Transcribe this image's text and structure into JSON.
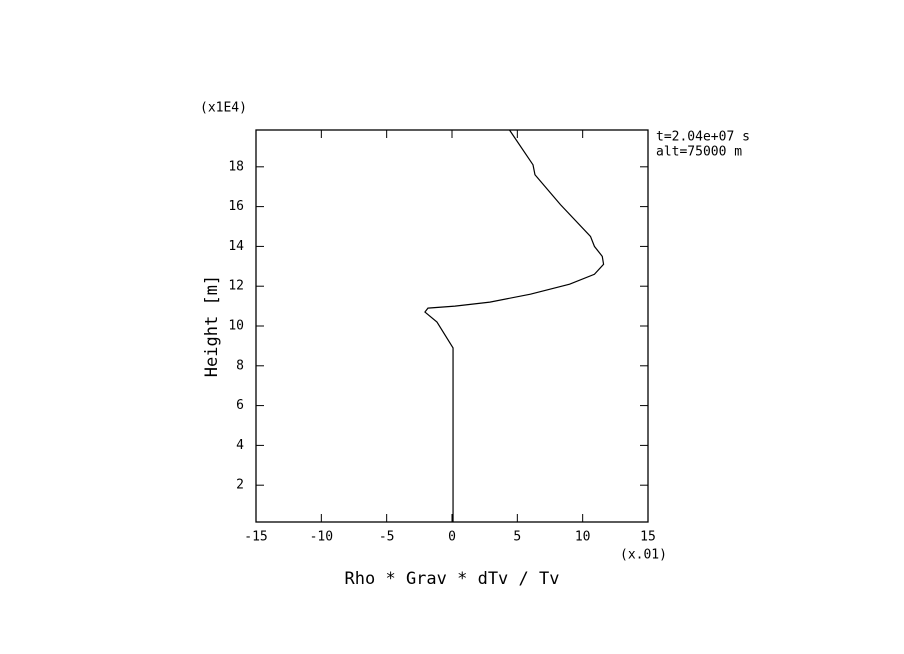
{
  "chart_data": {
    "type": "line",
    "x_label": "Rho * Grav * dTv / Tv",
    "y_label": "Height [m]",
    "x_multiplier": "(x.01)",
    "y_multiplier": "(x1E4)",
    "annotations": [
      "t=2.04e+07 s",
      "alt=75000 m"
    ],
    "color": "#000000",
    "x": [
      0.08,
      0.08,
      -1.15,
      -2.07,
      -1.84,
      0.23,
      2.9,
      6.0,
      9.0,
      10.9,
      11.6,
      11.5,
      10.9,
      10.6,
      8.3,
      6.35,
      6.2,
      4.4
    ],
    "values": [
      0.15,
      8.9,
      10.2,
      10.7,
      10.9,
      11.0,
      11.2,
      11.6,
      12.1,
      12.6,
      13.1,
      13.5,
      14.0,
      14.5,
      16.1,
      17.6,
      18.1,
      19.85
    ],
    "xlim": [
      -15,
      15
    ],
    "ylim": [
      0.15,
      19.85
    ],
    "xticks": [
      -15,
      -10,
      -5,
      0,
      5,
      10,
      15
    ],
    "yticks": [
      2,
      4,
      6,
      8,
      10,
      12,
      14,
      16,
      18
    ]
  }
}
